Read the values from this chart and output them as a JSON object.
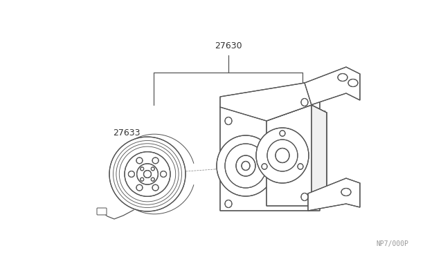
{
  "background_color": "#ffffff",
  "line_color": "#555555",
  "text_color": "#333333",
  "part_label_1": "27630",
  "part_label_2": "27633",
  "diagram_code": "NP7/000P",
  "fig_width": 6.4,
  "fig_height": 3.72,
  "dpi": 100
}
